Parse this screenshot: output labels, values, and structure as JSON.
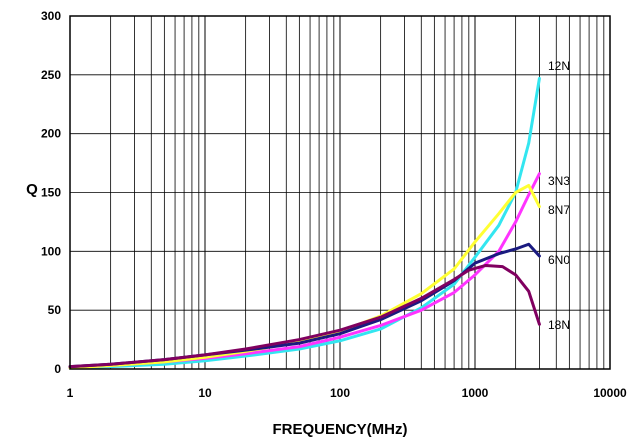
{
  "chart_data": {
    "type": "line",
    "title": "",
    "xlabel": "FREQUENCY(MHz)",
    "ylabel": "Q",
    "x_scale": "log",
    "xlim": [
      1,
      10000
    ],
    "ylim": [
      0,
      300
    ],
    "grid": true,
    "legend": "labels at right end of lines",
    "x_ticks": [
      "1",
      "10",
      "100",
      "1000",
      "10000"
    ],
    "y_ticks": [
      "0",
      "50",
      "100",
      "150",
      "200",
      "250",
      "300"
    ],
    "series": [
      {
        "name": "12N",
        "color": "#33e6f0",
        "x": [
          1,
          2,
          5,
          10,
          20,
          50,
          100,
          200,
          400,
          700,
          1000,
          1500,
          2000,
          2500,
          3000
        ],
        "y": [
          1,
          2,
          4,
          7,
          11,
          17,
          24,
          34,
          52,
          72,
          95,
          122,
          150,
          192,
          247
        ]
      },
      {
        "name": "3N3",
        "color": "#ff33ff",
        "x": [
          1,
          2,
          5,
          10,
          20,
          50,
          100,
          200,
          400,
          700,
          1000,
          1500,
          2000,
          2500,
          3000
        ],
        "y": [
          1,
          3,
          6,
          9,
          13,
          19,
          27,
          37,
          50,
          65,
          80,
          100,
          125,
          148,
          166
        ]
      },
      {
        "name": "8N7",
        "color": "#ffff33",
        "x": [
          1,
          2,
          5,
          10,
          20,
          50,
          100,
          200,
          400,
          700,
          1000,
          1500,
          2000,
          2500,
          3000
        ],
        "y": [
          1,
          3,
          6,
          10,
          15,
          23,
          32,
          45,
          64,
          85,
          108,
          132,
          150,
          156,
          138
        ]
      },
      {
        "name": "6N0",
        "color": "#1a1a80",
        "x": [
          1,
          2,
          5,
          10,
          20,
          50,
          100,
          200,
          400,
          700,
          1000,
          1500,
          2000,
          2500,
          3000
        ],
        "y": [
          2,
          4,
          8,
          12,
          16,
          22,
          30,
          42,
          58,
          75,
          90,
          98,
          102,
          106,
          96
        ]
      },
      {
        "name": "18N",
        "color": "#800060",
        "x": [
          1,
          2,
          5,
          10,
          20,
          50,
          100,
          200,
          400,
          700,
          900,
          1200,
          1600,
          2000,
          2500,
          3000
        ],
        "y": [
          2,
          4,
          8,
          12,
          17,
          25,
          33,
          44,
          60,
          76,
          84,
          88,
          87,
          80,
          66,
          38
        ]
      }
    ]
  }
}
